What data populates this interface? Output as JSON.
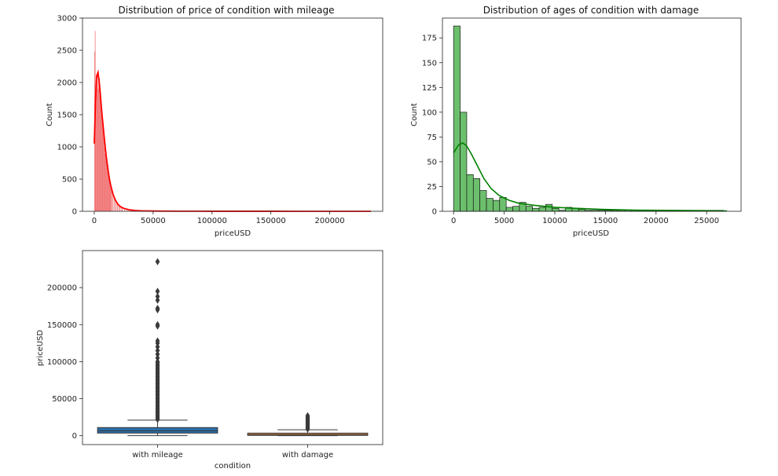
{
  "chart_data": [
    {
      "type": "histogram",
      "title": "Distribution of price of condition with mileage",
      "xlabel": "priceUSD",
      "ylabel": "Count",
      "xlim": [
        -10000,
        245000
      ],
      "ylim": [
        0,
        3000
      ],
      "xticks": [
        0,
        50000,
        100000,
        150000,
        200000
      ],
      "yticks": [
        0,
        500,
        1000,
        1500,
        2000,
        2500,
        3000
      ],
      "bar_color": "#f06060",
      "kde_color": "#ff0000",
      "bars": [
        {
          "x": 500,
          "y": 2480
        },
        {
          "x": 1000,
          "y": 2800
        },
        {
          "x": 1500,
          "y": 1650
        },
        {
          "x": 2000,
          "y": 2050
        },
        {
          "x": 2500,
          "y": 2000
        },
        {
          "x": 3000,
          "y": 2150
        },
        {
          "x": 3500,
          "y": 1900
        },
        {
          "x": 4000,
          "y": 2200
        },
        {
          "x": 4500,
          "y": 1950
        },
        {
          "x": 5000,
          "y": 1800
        },
        {
          "x": 5500,
          "y": 1700
        },
        {
          "x": 6000,
          "y": 1600
        },
        {
          "x": 6500,
          "y": 1500
        },
        {
          "x": 7000,
          "y": 1400
        },
        {
          "x": 7500,
          "y": 1320
        },
        {
          "x": 8000,
          "y": 1200
        },
        {
          "x": 8500,
          "y": 1150
        },
        {
          "x": 9000,
          "y": 1000
        },
        {
          "x": 9500,
          "y": 900
        },
        {
          "x": 10000,
          "y": 960
        },
        {
          "x": 10500,
          "y": 820
        },
        {
          "x": 11000,
          "y": 700
        },
        {
          "x": 11500,
          "y": 640
        },
        {
          "x": 12000,
          "y": 720
        },
        {
          "x": 12500,
          "y": 560
        },
        {
          "x": 13000,
          "y": 500
        },
        {
          "x": 13500,
          "y": 450
        },
        {
          "x": 14000,
          "y": 420
        },
        {
          "x": 14500,
          "y": 380
        },
        {
          "x": 15000,
          "y": 330
        },
        {
          "x": 16000,
          "y": 280
        },
        {
          "x": 17000,
          "y": 230
        },
        {
          "x": 18000,
          "y": 190
        },
        {
          "x": 19000,
          "y": 160
        },
        {
          "x": 20000,
          "y": 130
        },
        {
          "x": 21000,
          "y": 110
        },
        {
          "x": 22000,
          "y": 90
        },
        {
          "x": 23000,
          "y": 75
        },
        {
          "x": 24000,
          "y": 60
        },
        {
          "x": 26000,
          "y": 45
        },
        {
          "x": 28000,
          "y": 35
        },
        {
          "x": 30000,
          "y": 28
        },
        {
          "x": 33000,
          "y": 20
        },
        {
          "x": 36000,
          "y": 14
        },
        {
          "x": 40000,
          "y": 10
        },
        {
          "x": 45000,
          "y": 7
        },
        {
          "x": 50000,
          "y": 5
        },
        {
          "x": 60000,
          "y": 3
        },
        {
          "x": 70000,
          "y": 2
        },
        {
          "x": 85000,
          "y": 1
        },
        {
          "x": 100000,
          "y": 1
        }
      ],
      "kde": [
        {
          "x": 0,
          "y": 1050
        },
        {
          "x": 1000,
          "y": 1700
        },
        {
          "x": 2000,
          "y": 2100
        },
        {
          "x": 3000,
          "y": 2150
        },
        {
          "x": 4000,
          "y": 2050
        },
        {
          "x": 5000,
          "y": 1850
        },
        {
          "x": 6000,
          "y": 1620
        },
        {
          "x": 7000,
          "y": 1420
        },
        {
          "x": 8000,
          "y": 1230
        },
        {
          "x": 9000,
          "y": 1050
        },
        {
          "x": 10000,
          "y": 880
        },
        {
          "x": 11000,
          "y": 730
        },
        {
          "x": 12000,
          "y": 600
        },
        {
          "x": 13000,
          "y": 490
        },
        {
          "x": 14000,
          "y": 400
        },
        {
          "x": 16000,
          "y": 260
        },
        {
          "x": 18000,
          "y": 170
        },
        {
          "x": 20000,
          "y": 110
        },
        {
          "x": 22000,
          "y": 75
        },
        {
          "x": 25000,
          "y": 45
        },
        {
          "x": 30000,
          "y": 22
        },
        {
          "x": 35000,
          "y": 12
        },
        {
          "x": 40000,
          "y": 7
        },
        {
          "x": 50000,
          "y": 4
        },
        {
          "x": 70000,
          "y": 2
        },
        {
          "x": 100000,
          "y": 1
        },
        {
          "x": 150000,
          "y": 0.5
        },
        {
          "x": 235000,
          "y": 0.2
        }
      ]
    },
    {
      "type": "histogram",
      "title": "Distribution of ages of condition with damage",
      "xlabel": "priceUSD",
      "ylabel": "Count",
      "xlim": [
        -1100,
        28400
      ],
      "ylim": [
        0,
        195
      ],
      "xticks": [
        0,
        5000,
        10000,
        15000,
        20000,
        25000
      ],
      "yticks": [
        0,
        25,
        50,
        75,
        100,
        125,
        150,
        175
      ],
      "bar_color": "#5cb85c",
      "kde_color": "#008000",
      "bin_width": 650,
      "bin_start": 0,
      "counts": [
        187,
        100,
        37,
        33,
        21,
        13,
        11,
        14,
        4,
        5,
        9,
        5,
        3,
        4,
        7,
        3,
        1,
        4,
        3,
        2,
        1,
        1,
        1,
        1,
        1,
        1,
        1,
        1,
        1,
        1,
        1,
        1,
        1,
        1,
        1,
        1,
        1,
        1,
        1,
        1,
        1
      ],
      "kde": [
        {
          "x": 0,
          "y": 59
        },
        {
          "x": 500,
          "y": 67
        },
        {
          "x": 900,
          "y": 69
        },
        {
          "x": 1300,
          "y": 66
        },
        {
          "x": 1800,
          "y": 57
        },
        {
          "x": 2400,
          "y": 45
        },
        {
          "x": 3000,
          "y": 33
        },
        {
          "x": 3700,
          "y": 23
        },
        {
          "x": 4500,
          "y": 16
        },
        {
          "x": 5500,
          "y": 11
        },
        {
          "x": 6500,
          "y": 8
        },
        {
          "x": 8000,
          "y": 6
        },
        {
          "x": 10000,
          "y": 4
        },
        {
          "x": 12000,
          "y": 3
        },
        {
          "x": 15000,
          "y": 1.8
        },
        {
          "x": 18000,
          "y": 1.2
        },
        {
          "x": 21000,
          "y": 0.9
        },
        {
          "x": 24000,
          "y": 0.7
        },
        {
          "x": 27000,
          "y": 0.4
        }
      ]
    },
    {
      "type": "box",
      "xlabel": "condition",
      "ylabel": "priceUSD",
      "categories": [
        "with mileage",
        "with damage"
      ],
      "ylim": [
        -12000,
        250000
      ],
      "yticks": [
        0,
        50000,
        100000,
        150000,
        200000
      ],
      "boxes": [
        {
          "name": "with mileage",
          "color": "#2a6ea8",
          "q1": 3500,
          "median": 6500,
          "q3": 11000,
          "whisker_low": 50,
          "whisker_high": 21000,
          "outliers": [
            22000,
            25000,
            28000,
            32000,
            36000,
            40000,
            45000,
            50000,
            55000,
            60000,
            65000,
            70000,
            75000,
            80000,
            85000,
            90000,
            95000,
            100000,
            105000,
            110000,
            115000,
            120000,
            125000,
            128000,
            148000,
            150000,
            170000,
            172000,
            183000,
            188000,
            195000,
            235000
          ]
        },
        {
          "name": "with damage",
          "color": "#d4823a",
          "q1": 400,
          "median": 1500,
          "q3": 3500,
          "whisker_low": 0,
          "whisker_high": 8000,
          "outliers": [
            9000,
            11000,
            13000,
            15000,
            17000,
            19000,
            21000,
            23000,
            25000,
            27000
          ]
        }
      ]
    }
  ]
}
